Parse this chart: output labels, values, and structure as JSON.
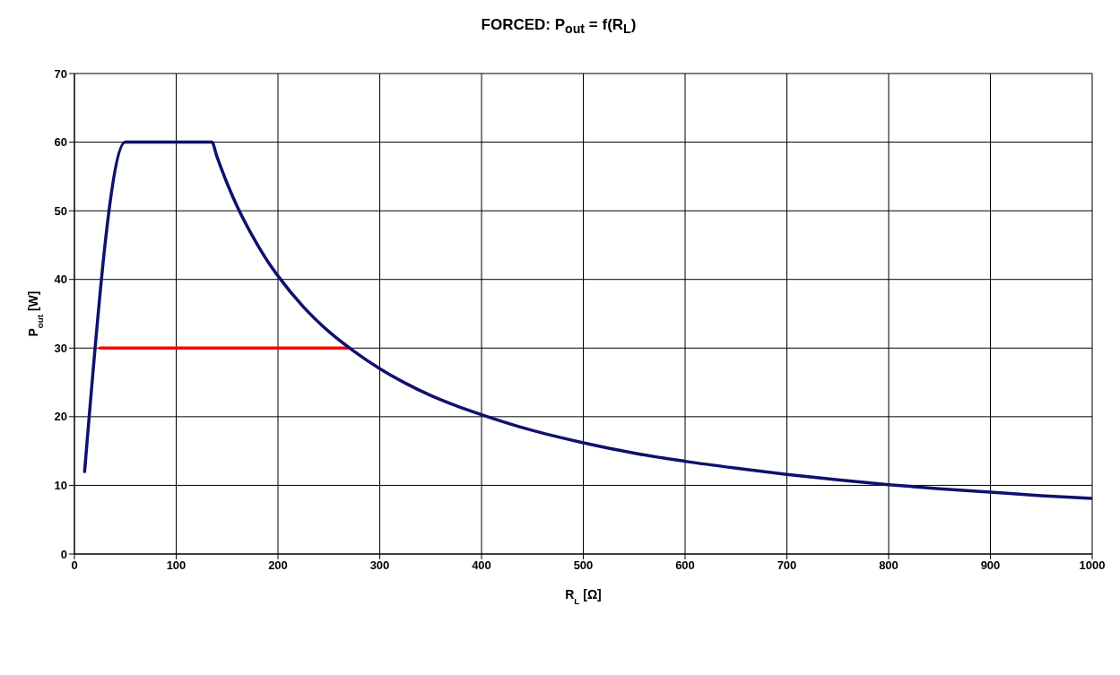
{
  "chart_data": {
    "type": "line",
    "title": "FORCED: P$_{out}$ = f(R$_{L}$)",
    "xlabel": "R$_{L}$ [Ω]",
    "ylabel": "P$_{out}$ [W]",
    "series": [
      {
        "color": "#ff0000",
        "x": [
          25,
          270
        ],
        "values": [
          30,
          30
        ]
      },
      {
        "color": "#10106e",
        "x": [
          10,
          50,
          135,
          140,
          150,
          160,
          175,
          190,
          200,
          225,
          250,
          275,
          300,
          325,
          350,
          375,
          400,
          450,
          500,
          550,
          600,
          650,
          700,
          750,
          800,
          850,
          900,
          950,
          1000
        ],
        "values": [
          12,
          60,
          60,
          57.9,
          54,
          50.6,
          46.3,
          42.6,
          40.5,
          36,
          32.4,
          29.5,
          27,
          24.9,
          23.1,
          21.6,
          20.3,
          18,
          16.2,
          14.7,
          13.5,
          12.5,
          11.6,
          10.8,
          10.1,
          9.5,
          9,
          8.5,
          8.1
        ]
      }
    ],
    "xlim": [
      0,
      1000
    ],
    "xticks": [
      0,
      100,
      200,
      300,
      400,
      500,
      600,
      700,
      800,
      900,
      1000
    ],
    "ylim": [
      0,
      70
    ],
    "yticks": [
      0,
      10,
      20,
      30,
      40,
      50,
      60,
      70
    ],
    "grid": true,
    "marker": "none",
    "line_style": "solid"
  }
}
